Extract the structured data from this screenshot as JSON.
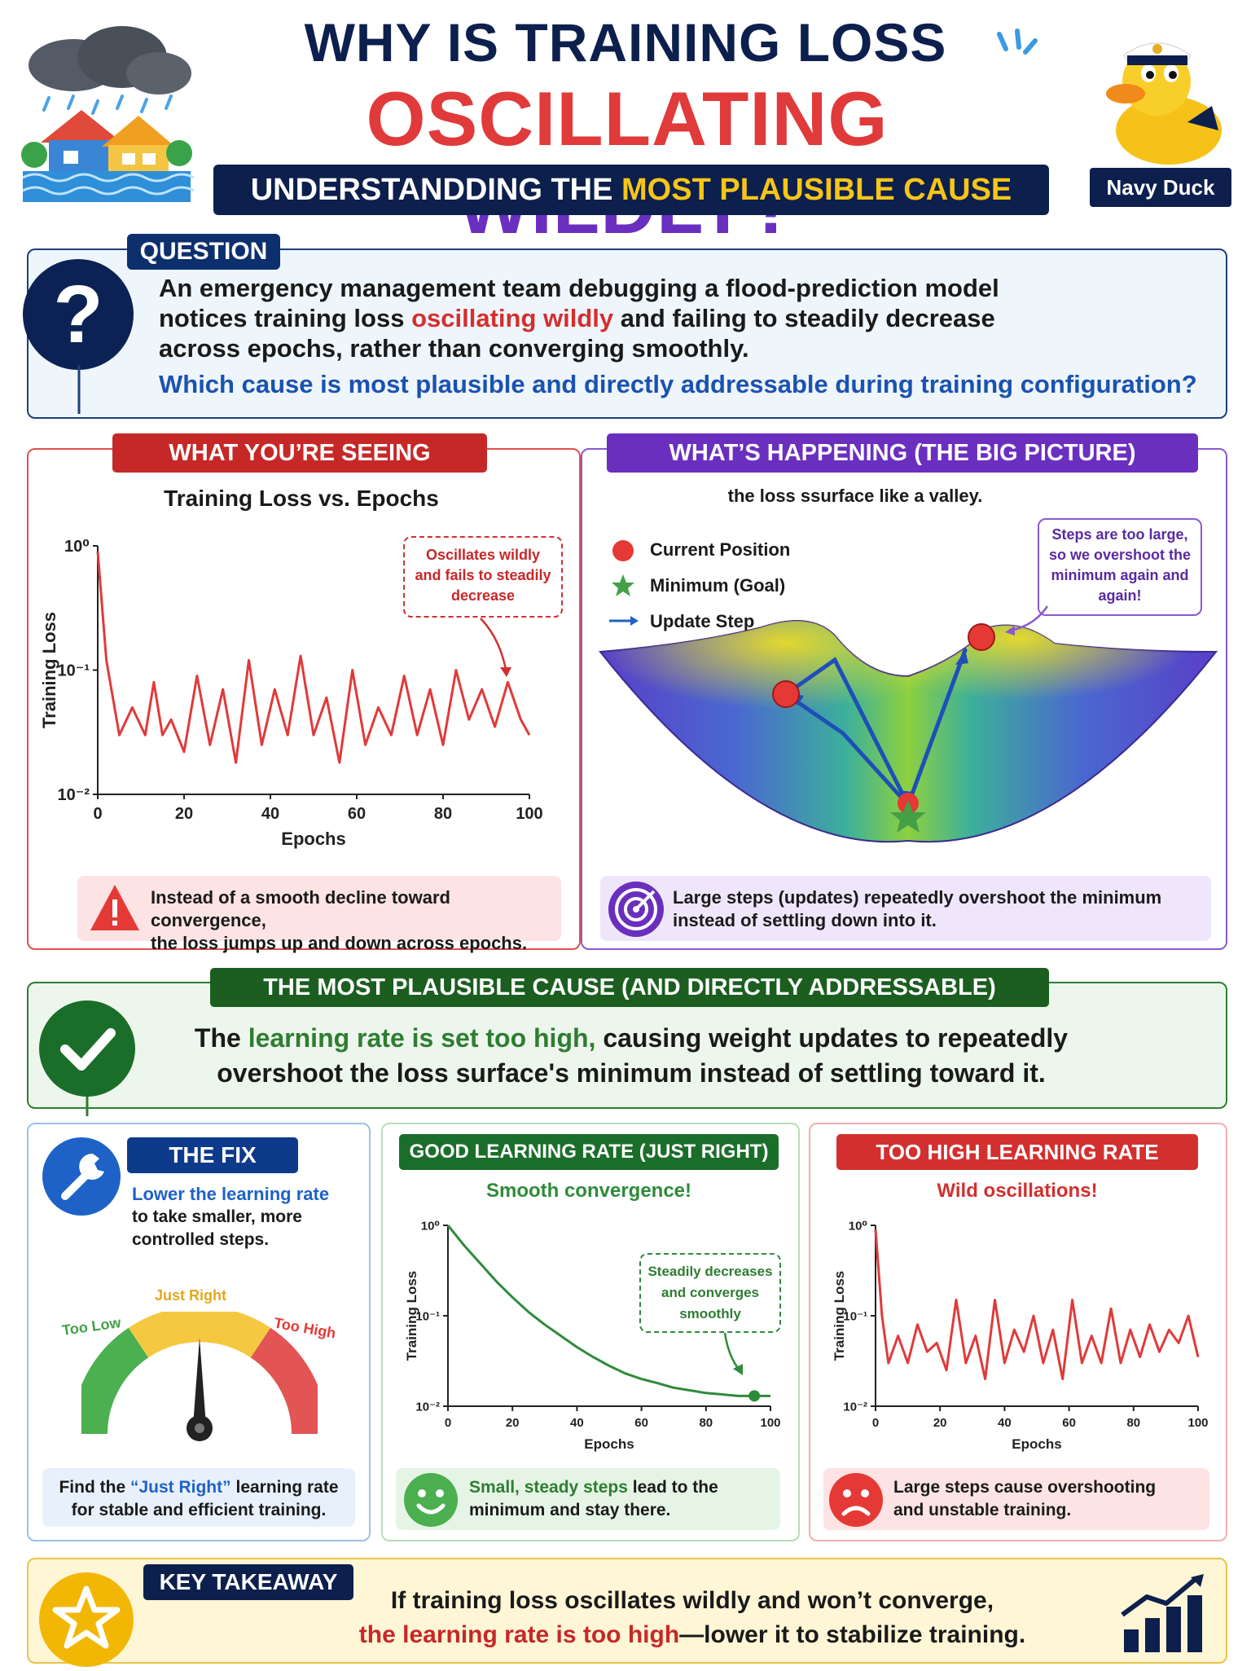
{
  "header": {
    "title_line1": "WHY IS TRAINING LOSS",
    "title_line2_red": "OSCILLATING",
    "title_line2_purple": "WILDLY?",
    "subtitle_white": "UNDERSTANDDING THE",
    "subtitle_yellow": "MOST PLAUSIBLE CAUSE",
    "mascot_label": "Navy Duck"
  },
  "question": {
    "tag": "QUESTION",
    "line1": "An emergency management team debugging a flood-prediction model",
    "line2_a": "notices training loss",
    "line2_red": "oscillating wildly",
    "line2_b": "and failing to steadily decrease",
    "line3": "across epochs, rather than converging smoothly.",
    "prompt": "Which cause is most plausible and directly addressable during training configuration?"
  },
  "seeing": {
    "tag": "WHAT YOU’RE SEEING",
    "chart_title": "Training Loss vs. Epochs",
    "callout_l1": "Oscillates wildly",
    "callout_l2": "and fails to steadily",
    "callout_l3": "decrease",
    "warning_l1": "Instead of a smooth decline toward convergence,",
    "warning_l2": "the loss jumps up and down across epochs."
  },
  "happening": {
    "tag": "WHAT’S HAPPENING (THE BIG PICTURE)",
    "caption": "the loss ssurface like a valley.",
    "legend_current": "Current Position",
    "legend_minimum": "Minimum (Goal)",
    "legend_update": "Update Step",
    "callout_l1": "Steps are too large,",
    "callout_l2": "so we overshoot the",
    "callout_l3": "minimum again and",
    "callout_l4": "again!",
    "note_l1": "Large steps (updates) repeatedly overshoot the minimum",
    "note_l2": "instead of settling down into it."
  },
  "cause": {
    "tag": "THE MOST PLAUSIBLE CAUSE (AND DIRECTLY ADDRESSABLE)",
    "line1_a": "The",
    "line1_green": "learning rate is set too high,",
    "line1_b": "causing weight updates to repeatedly",
    "line2": "overshoot the loss surface's minimum instead of settling toward it."
  },
  "fix": {
    "tag": "THE FIX",
    "line1": "Lower the learning rate",
    "line2": "to take smaller, more",
    "line3": "controlled steps.",
    "gauge_low": "Too Low",
    "gauge_right": "Just Right",
    "gauge_high": "Too High",
    "bottom_a": "Find the",
    "bottom_blue": "“Just Right”",
    "bottom_b": "learning rate",
    "bottom_l2": "for stable and efficient training."
  },
  "good": {
    "tag": "GOOD LEARNING RATE (JUST RIGHT)",
    "subtitle": "Smooth convergence!",
    "callout_l1": "Steadily decreases",
    "callout_l2": "and converges",
    "callout_l3": "smoothly",
    "note_green": "Small, steady steps",
    "note_a": "lead to the",
    "note_l2": "minimum and stay there."
  },
  "bad": {
    "tag": "TOO HIGH LEARNING RATE",
    "subtitle": "Wild oscillations!",
    "note_l1": "Large steps cause overshooting",
    "note_l2": "and unstable training."
  },
  "takeaway": {
    "tag": "KEY TAKEAWAY",
    "line1": "If training loss oscillates wildly and won’t converge,",
    "line2_red": "the learning rate is too high",
    "line2_b": "—lower it to stabilize training."
  },
  "chart_data": [
    {
      "type": "line",
      "id": "main",
      "title": "Training Loss vs. Epochs",
      "xlabel": "Epochs",
      "ylabel": "Training Loss",
      "xlim": [
        0,
        100
      ],
      "ylim": [
        0.01,
        1
      ],
      "yscale": "log",
      "xticks": [
        "0",
        "20",
        "40",
        "60",
        "80",
        "100"
      ],
      "yticks": [
        "10⁰",
        "10⁻¹",
        "10⁻²"
      ],
      "color": "#e03a3a",
      "x": [
        0,
        2,
        5,
        8,
        11,
        13,
        15,
        17,
        20,
        23,
        26,
        29,
        32,
        35,
        38,
        41,
        44,
        47,
        50,
        53,
        56,
        59,
        62,
        65,
        68,
        71,
        74,
        77,
        80,
        83,
        86,
        89,
        92,
        95,
        98,
        100
      ],
      "y": [
        0.9,
        0.12,
        0.03,
        0.05,
        0.03,
        0.08,
        0.03,
        0.04,
        0.022,
        0.09,
        0.025,
        0.07,
        0.018,
        0.12,
        0.025,
        0.07,
        0.03,
        0.13,
        0.03,
        0.06,
        0.018,
        0.1,
        0.025,
        0.05,
        0.03,
        0.09,
        0.03,
        0.07,
        0.025,
        0.1,
        0.04,
        0.07,
        0.035,
        0.08,
        0.04,
        0.03
      ]
    },
    {
      "type": "line",
      "id": "good",
      "xlabel": "Epochs",
      "ylabel": "Training Loss",
      "xlim": [
        0,
        100
      ],
      "ylim": [
        0.01,
        1
      ],
      "yscale": "log",
      "xticks": [
        "0",
        "20",
        "40",
        "60",
        "80",
        "100"
      ],
      "yticks": [
        "10⁰",
        "10⁻¹",
        "10⁻²"
      ],
      "color": "#2e8b3a",
      "x": [
        0,
        5,
        10,
        15,
        20,
        25,
        30,
        35,
        40,
        45,
        50,
        55,
        60,
        65,
        70,
        75,
        80,
        85,
        90,
        95,
        100
      ],
      "y": [
        1.0,
        0.6,
        0.38,
        0.24,
        0.16,
        0.11,
        0.08,
        0.06,
        0.045,
        0.035,
        0.028,
        0.023,
        0.02,
        0.018,
        0.016,
        0.015,
        0.014,
        0.0135,
        0.013,
        0.013,
        0.013
      ]
    },
    {
      "type": "line",
      "id": "bad",
      "xlabel": "Epochs",
      "ylabel": "Training Loss",
      "xlim": [
        0,
        100
      ],
      "ylim": [
        0.01,
        1
      ],
      "yscale": "log",
      "xticks": [
        "0",
        "20",
        "40",
        "60",
        "80",
        "100"
      ],
      "yticks": [
        "10⁰",
        "10⁻¹",
        "10⁻²"
      ],
      "color": "#e03a3a",
      "x": [
        0,
        2,
        4,
        7,
        10,
        13,
        16,
        19,
        22,
        25,
        28,
        31,
        34,
        37,
        40,
        43,
        46,
        49,
        52,
        55,
        58,
        61,
        64,
        67,
        70,
        73,
        76,
        79,
        82,
        85,
        88,
        91,
        94,
        97,
        100
      ],
      "y": [
        0.9,
        0.1,
        0.03,
        0.06,
        0.03,
        0.08,
        0.04,
        0.05,
        0.025,
        0.15,
        0.03,
        0.06,
        0.02,
        0.15,
        0.03,
        0.07,
        0.04,
        0.1,
        0.03,
        0.07,
        0.02,
        0.15,
        0.03,
        0.06,
        0.03,
        0.12,
        0.03,
        0.07,
        0.035,
        0.08,
        0.04,
        0.07,
        0.05,
        0.1,
        0.035
      ]
    }
  ]
}
